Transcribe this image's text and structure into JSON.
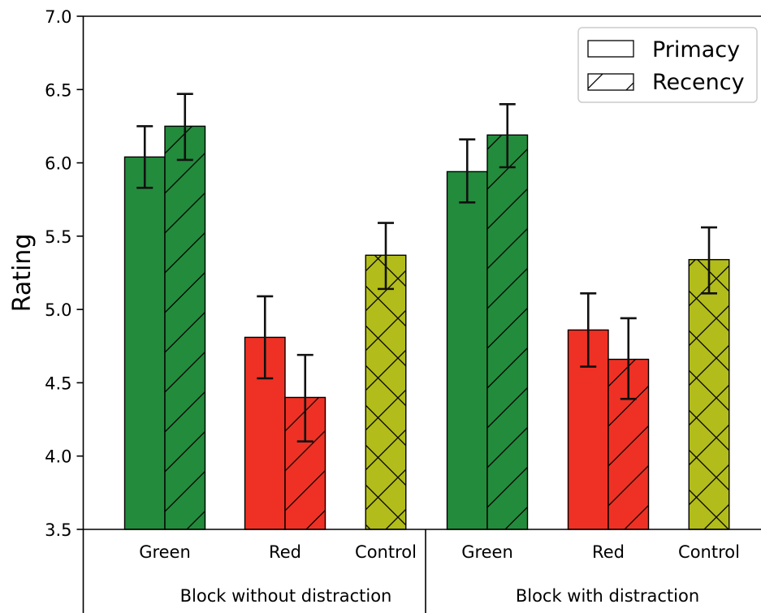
{
  "chart_data": {
    "type": "bar",
    "ylabel": "Rating",
    "ylim": [
      3.5,
      7.0
    ],
    "yticks": [
      "3.5",
      "4.0",
      "4.5",
      "5.0",
      "5.5",
      "6.0",
      "6.5",
      "7.0"
    ],
    "groups": [
      {
        "label": "Block without distraction",
        "categories": [
          {
            "label": "Green",
            "bars": [
              {
                "series": "Primacy",
                "value": 6.04,
                "err_low": 5.83,
                "err_high": 6.25,
                "color": "#238b3c",
                "pattern": "none"
              },
              {
                "series": "Recency",
                "value": 6.25,
                "err_low": 6.02,
                "err_high": 6.47,
                "color": "#238b3c",
                "pattern": "diag"
              }
            ]
          },
          {
            "label": "Red",
            "bars": [
              {
                "series": "Primacy",
                "value": 4.81,
                "err_low": 4.53,
                "err_high": 5.09,
                "color": "#ee3124",
                "pattern": "none"
              },
              {
                "series": "Recency",
                "value": 4.4,
                "err_low": 4.1,
                "err_high": 4.69,
                "color": "#ee3124",
                "pattern": "diag"
              }
            ]
          },
          {
            "label": "Control",
            "bars": [
              {
                "series": "Control",
                "value": 5.37,
                "err_low": 5.14,
                "err_high": 5.59,
                "color": "#b2bc1a",
                "pattern": "cross"
              }
            ]
          }
        ]
      },
      {
        "label": "Block with distraction",
        "categories": [
          {
            "label": "Green",
            "bars": [
              {
                "series": "Primacy",
                "value": 5.94,
                "err_low": 5.73,
                "err_high": 6.16,
                "color": "#238b3c",
                "pattern": "none"
              },
              {
                "series": "Recency",
                "value": 6.19,
                "err_low": 5.97,
                "err_high": 6.4,
                "color": "#238b3c",
                "pattern": "diag"
              }
            ]
          },
          {
            "label": "Red",
            "bars": [
              {
                "series": "Primacy",
                "value": 4.86,
                "err_low": 4.61,
                "err_high": 5.11,
                "color": "#ee3124",
                "pattern": "none"
              },
              {
                "series": "Recency",
                "value": 4.66,
                "err_low": 4.39,
                "err_high": 4.94,
                "color": "#ee3124",
                "pattern": "diag"
              }
            ]
          },
          {
            "label": "Control",
            "bars": [
              {
                "series": "Control",
                "value": 5.34,
                "err_low": 5.11,
                "err_high": 5.56,
                "color": "#b2bc1a",
                "pattern": "cross"
              }
            ]
          }
        ]
      }
    ],
    "legend": {
      "position": "top-right",
      "entries": [
        {
          "label": "Primacy",
          "pattern": "none"
        },
        {
          "label": "Recency",
          "pattern": "diag"
        }
      ]
    },
    "grid": false
  }
}
